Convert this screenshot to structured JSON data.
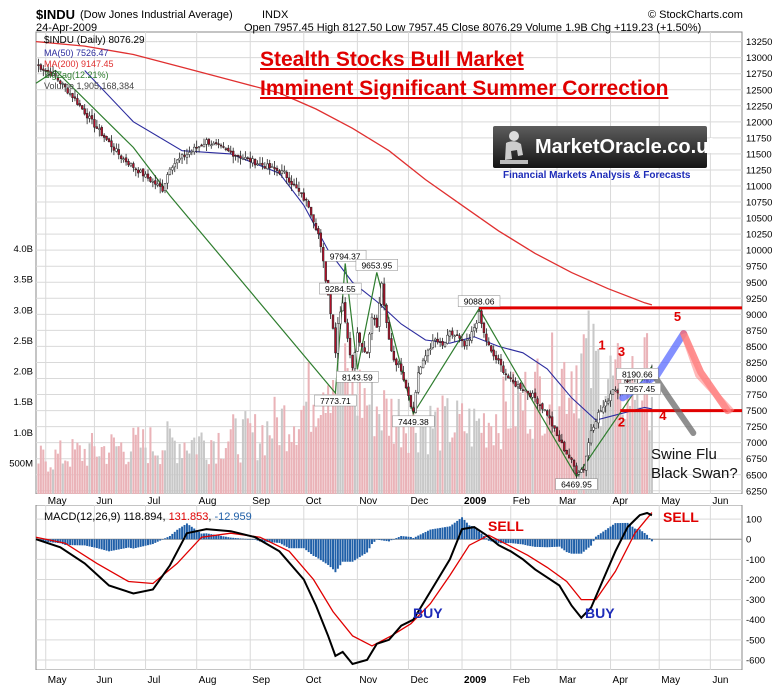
{
  "header": {
    "symbol": "$INDU",
    "name": "(Dow Jones Industrial Average)",
    "exchange": "INDX",
    "copyright": "© StockCharts.com",
    "date": "24-Apr-2009",
    "ohlc": "Open 7957.45  High 8127.50  Low 7957.45  Close 8076.29  Volume 1.9B  Chg +119.23 (+1.50%)"
  },
  "legend": {
    "price": "$INDU (Daily) 8076.29",
    "ma50": "MA(50) 7526.47",
    "ma200": "MA(200) 9147.45",
    "zigzag": "ZigZag(12.21%)",
    "volume": "Volume 1,905,168,384"
  },
  "colors": {
    "ma50": "#2c2c9e",
    "ma200": "#e03030",
    "zigzag": "#2e7d2e",
    "up": "#ffffff",
    "down": "#b0102a",
    "annotation": "#e00000",
    "grid": "#d9d9d9"
  },
  "annotations": {
    "title_line1": "Stealth Stocks Bull Market",
    "title_line2": "Imminent Significant Summer Correction",
    "logo_name": "MarketOracle.co.uk",
    "logo_tag": "Financial Markets Analysis & Forecasts",
    "wave_labels": [
      "1",
      "2",
      "3",
      "4",
      "5"
    ],
    "swine_flu": "Swine Flu",
    "black_swan": "Black Swan?",
    "sell_1": "SELL",
    "sell_2": "SELL",
    "buy_1": "BUY",
    "buy_2": "BUY"
  },
  "chart_data": [
    {
      "type": "candlestick",
      "title": "$INDU (Daily)",
      "x_labels": [
        "May",
        "Jun",
        "Jul",
        "Aug",
        "Sep",
        "Oct",
        "Nov",
        "Dec",
        "2009",
        "Feb",
        "Mar",
        "Apr",
        "May",
        "Jun"
      ],
      "y_ticks": [
        6250,
        6500,
        6750,
        7000,
        7250,
        7500,
        7750,
        8000,
        8250,
        8500,
        8750,
        9000,
        9250,
        9500,
        9750,
        10000,
        10250,
        10500,
        10750,
        11000,
        11250,
        11500,
        11750,
        12000,
        12250,
        12500,
        12750,
        13000,
        13250
      ],
      "ylim": [
        6200,
        13400
      ],
      "price_path": [
        [
          0,
          12900
        ],
        [
          8,
          12700
        ],
        [
          15,
          12400
        ],
        [
          25,
          11900
        ],
        [
          35,
          11450
        ],
        [
          45,
          11150
        ],
        [
          52,
          10950
        ],
        [
          55,
          11300
        ],
        [
          60,
          11450
        ],
        [
          70,
          11700
        ],
        [
          78,
          11550
        ],
        [
          88,
          11400
        ],
        [
          95,
          11300
        ],
        [
          102,
          11200
        ],
        [
          108,
          10900
        ],
        [
          112,
          10700
        ],
        [
          116,
          10250
        ],
        [
          118,
          9800
        ],
        [
          120,
          9300
        ],
        [
          122,
          8800
        ],
        [
          123,
          8400
        ],
        [
          124,
          8900
        ],
        [
          126,
          9200
        ],
        [
          128,
          8600
        ],
        [
          130,
          8200
        ],
        [
          132,
          8700
        ],
        [
          134,
          8500
        ],
        [
          136,
          8400
        ],
        [
          138,
          9000
        ],
        [
          140,
          8800
        ],
        [
          142,
          9500
        ],
        [
          143,
          9100
        ],
        [
          145,
          8600
        ],
        [
          147,
          8300
        ],
        [
          150,
          8150
        ],
        [
          153,
          7750
        ],
        [
          154,
          7600
        ],
        [
          155,
          7480
        ],
        [
          157,
          8100
        ],
        [
          159,
          8250
        ],
        [
          161,
          8450
        ],
        [
          164,
          8600
        ],
        [
          167,
          8500
        ],
        [
          170,
          8700
        ],
        [
          173,
          8650
        ],
        [
          176,
          8500
        ],
        [
          178,
          8600
        ],
        [
          180,
          8800
        ],
        [
          182,
          9000
        ],
        [
          184,
          8700
        ],
        [
          187,
          8400
        ],
        [
          190,
          8250
        ],
        [
          195,
          7950
        ],
        [
          200,
          7850
        ],
        [
          205,
          7700
        ],
        [
          210,
          7450
        ],
        [
          214,
          7100
        ],
        [
          217,
          6900
        ],
        [
          220,
          6700
        ],
        [
          222,
          6550
        ],
        [
          225,
          6600
        ],
        [
          228,
          7200
        ],
        [
          231,
          7450
        ],
        [
          234,
          7600
        ],
        [
          237,
          7850
        ],
        [
          240,
          7800
        ],
        [
          243,
          8000
        ],
        [
          246,
          8050
        ],
        [
          249,
          8100
        ],
        [
          251,
          7950
        ],
        [
          253,
          8076
        ]
      ],
      "ma50": [
        [
          20,
          12800
        ],
        [
          40,
          12000
        ],
        [
          60,
          11550
        ],
        [
          80,
          11500
        ],
        [
          100,
          11200
        ],
        [
          110,
          10700
        ],
        [
          120,
          10000
        ],
        [
          130,
          9500
        ],
        [
          140,
          9200
        ],
        [
          150,
          8850
        ],
        [
          160,
          8600
        ],
        [
          170,
          8550
        ],
        [
          180,
          8650
        ],
        [
          190,
          8500
        ],
        [
          200,
          8400
        ],
        [
          210,
          8150
        ],
        [
          220,
          7700
        ],
        [
          230,
          7350
        ],
        [
          240,
          7450
        ],
        [
          250,
          7550
        ],
        [
          253,
          7526
        ]
      ],
      "ma200": [
        [
          0,
          13250
        ],
        [
          20,
          13180
        ],
        [
          40,
          13050
        ],
        [
          60,
          12850
        ],
        [
          80,
          12650
        ],
        [
          100,
          12450
        ],
        [
          115,
          12200
        ],
        [
          130,
          11900
        ],
        [
          145,
          11550
        ],
        [
          160,
          11100
        ],
        [
          175,
          10700
        ],
        [
          190,
          10300
        ],
        [
          205,
          9950
        ],
        [
          220,
          9650
        ],
        [
          235,
          9400
        ],
        [
          250,
          9180
        ],
        [
          253,
          9147
        ]
      ],
      "zigzag": [
        [
          0,
          12600
        ],
        [
          8,
          12800
        ],
        [
          40,
          11600
        ],
        [
          55,
          10850
        ],
        [
          123,
          7773.71
        ],
        [
          127,
          9794.37
        ],
        [
          132,
          8143.59
        ],
        [
          140,
          9653.95
        ],
        [
          155,
          7449.38
        ],
        [
          182,
          9088.06
        ],
        [
          222,
          6469.95
        ],
        [
          253,
          8190.66
        ]
      ],
      "point_labels": [
        {
          "x": 123,
          "y": 7773.71,
          "text": "7773.71"
        },
        {
          "x": 127,
          "y": 9794.37,
          "text": "9794.37"
        },
        {
          "x": 125,
          "y": 9284.55,
          "text": "9284.55"
        },
        {
          "x": 140,
          "y": 9653.95,
          "text": "9653.95"
        },
        {
          "x": 132,
          "y": 8143.59,
          "text": "8143.59"
        },
        {
          "x": 155,
          "y": 7449.38,
          "text": "7449.38"
        },
        {
          "x": 182,
          "y": 9088.06,
          "text": "9088.06"
        },
        {
          "x": 222,
          "y": 6469.95,
          "text": "6469.95"
        },
        {
          "x": 247,
          "y": 8190.66,
          "text": "8190.66"
        },
        {
          "x": 248,
          "y": 7957.45,
          "text": "7957.45"
        }
      ],
      "horizontal_lines": [
        9100,
        7500
      ],
      "forecast_blue": [
        [
          241,
          7700
        ],
        [
          255,
          8050
        ],
        [
          266,
          8700
        ]
      ],
      "forecast_red": [
        [
          266,
          8700
        ],
        [
          273,
          8100
        ],
        [
          284,
          7500
        ]
      ],
      "forecast_black": [
        [
          253,
          8100
        ],
        [
          260,
          7700
        ],
        [
          270,
          7150
        ]
      ]
    },
    {
      "type": "bar",
      "title": "Volume",
      "y_ticks_labels": [
        "500M",
        "1.0B",
        "1.5B",
        "2.0B",
        "2.5B",
        "3.0B",
        "3.5B",
        "4.0B"
      ],
      "y_ticks_values": [
        0.5,
        1.0,
        1.5,
        2.0,
        2.5,
        3.0,
        3.5,
        4.0
      ],
      "unit": "B shares",
      "profile": [
        [
          0,
          0.55
        ],
        [
          30,
          0.75
        ],
        [
          60,
          0.85
        ],
        [
          90,
          0.95
        ],
        [
          110,
          1.4
        ],
        [
          120,
          2.1
        ],
        [
          130,
          1.7
        ],
        [
          145,
          1.3
        ],
        [
          160,
          1.15
        ],
        [
          180,
          1.1
        ],
        [
          200,
          1.5
        ],
        [
          215,
          1.9
        ],
        [
          225,
          2.2
        ],
        [
          240,
          1.7
        ],
        [
          253,
          1.9
        ]
      ]
    },
    {
      "type": "line",
      "title": "MACD(12,26,9)",
      "legend_text": "MACD(12,26,9)",
      "legend_values": [
        "118.894",
        "131.853",
        "-12.959"
      ],
      "legend_colors": [
        "#000000",
        "#e00000",
        "#1f5fa8"
      ],
      "y_ticks": [
        -600,
        -500,
        -400,
        -300,
        -200,
        -100,
        0,
        100
      ],
      "ylim": [
        -650,
        170
      ],
      "macd": [
        [
          0,
          0
        ],
        [
          10,
          -40
        ],
        [
          20,
          -120
        ],
        [
          30,
          -230
        ],
        [
          40,
          -270
        ],
        [
          48,
          -250
        ],
        [
          55,
          -130
        ],
        [
          62,
          30
        ],
        [
          70,
          50
        ],
        [
          80,
          40
        ],
        [
          90,
          10
        ],
        [
          100,
          -60
        ],
        [
          110,
          -200
        ],
        [
          115,
          -330
        ],
        [
          120,
          -480
        ],
        [
          123,
          -580
        ],
        [
          126,
          -560
        ],
        [
          130,
          -620
        ],
        [
          136,
          -600
        ],
        [
          140,
          -520
        ],
        [
          145,
          -500
        ],
        [
          150,
          -430
        ],
        [
          155,
          -400
        ],
        [
          160,
          -300
        ],
        [
          165,
          -200
        ],
        [
          170,
          -100
        ],
        [
          175,
          50
        ],
        [
          180,
          60
        ],
        [
          185,
          20
        ],
        [
          190,
          -30
        ],
        [
          195,
          -60
        ],
        [
          200,
          -100
        ],
        [
          205,
          -150
        ],
        [
          210,
          -190
        ],
        [
          215,
          -230
        ],
        [
          220,
          -330
        ],
        [
          224,
          -390
        ],
        [
          228,
          -340
        ],
        [
          233,
          -200
        ],
        [
          238,
          -60
        ],
        [
          243,
          60
        ],
        [
          248,
          120
        ],
        [
          251,
          130
        ],
        [
          253,
          119
        ]
      ],
      "signal": [
        [
          0,
          10
        ],
        [
          12,
          -20
        ],
        [
          25,
          -120
        ],
        [
          38,
          -210
        ],
        [
          48,
          -220
        ],
        [
          58,
          -120
        ],
        [
          68,
          10
        ],
        [
          80,
          30
        ],
        [
          92,
          10
        ],
        [
          104,
          -60
        ],
        [
          114,
          -200
        ],
        [
          122,
          -360
        ],
        [
          130,
          -480
        ],
        [
          138,
          -530
        ],
        [
          146,
          -480
        ],
        [
          154,
          -420
        ],
        [
          162,
          -320
        ],
        [
          170,
          -180
        ],
        [
          178,
          -30
        ],
        [
          186,
          20
        ],
        [
          194,
          -30
        ],
        [
          202,
          -80
        ],
        [
          210,
          -140
        ],
        [
          218,
          -210
        ],
        [
          224,
          -300
        ],
        [
          230,
          -300
        ],
        [
          238,
          -160
        ],
        [
          246,
          30
        ],
        [
          253,
          132
        ]
      ],
      "x_labels": [
        "May",
        "Jun",
        "Jul",
        "Aug",
        "Sep",
        "Oct",
        "Nov",
        "Dec",
        "2009",
        "Feb",
        "Mar",
        "Apr",
        "May",
        "Jun"
      ]
    }
  ]
}
